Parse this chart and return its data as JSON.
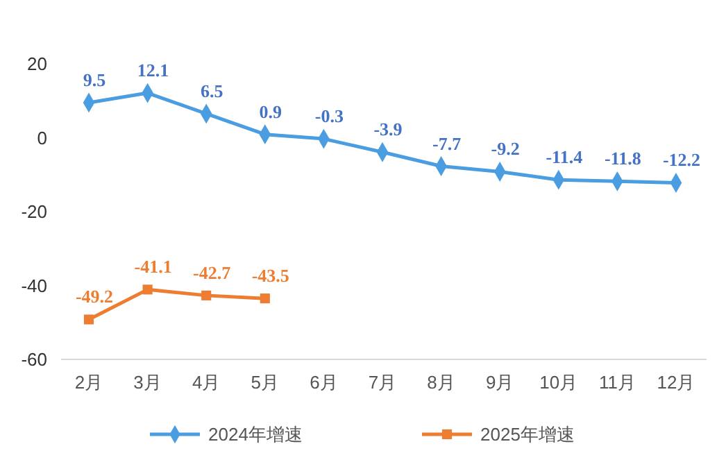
{
  "chart_data": {
    "type": "line",
    "categories": [
      "2月",
      "3月",
      "4月",
      "5月",
      "6月",
      "7月",
      "8月",
      "9月",
      "10月",
      "11月",
      "12月"
    ],
    "series": [
      {
        "name": "2024年增速",
        "color": "#4a9de0",
        "marker": "diamond",
        "values": [
          9.5,
          12.1,
          6.5,
          0.9,
          -0.3,
          -3.9,
          -7.7,
          -9.2,
          -11.4,
          -11.8,
          -12.2
        ]
      },
      {
        "name": "2025年增速",
        "color": "#ed7d31",
        "marker": "square",
        "values": [
          -49.2,
          -41.1,
          -42.7,
          -43.5,
          null,
          null,
          null,
          null,
          null,
          null,
          null
        ]
      }
    ],
    "ylim": [
      -60,
      20
    ],
    "yticks": [
      -60,
      -40,
      -20,
      0,
      20
    ],
    "grid": false,
    "legend": "bottom",
    "data_labels": true,
    "line_style": "solid"
  }
}
